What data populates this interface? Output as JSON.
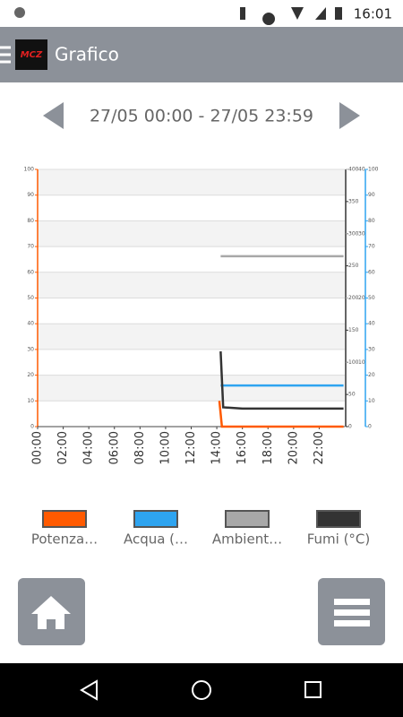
{
  "status_bar": {
    "time": "16:01"
  },
  "toolbar": {
    "logo": "MCZ",
    "title": "Grafico"
  },
  "date_range": "27/05 00:00 - 27/05 23:59",
  "chart_data": {
    "type": "line",
    "xlim": [
      0,
      24
    ],
    "xticks": [
      {
        "value": 0,
        "label": "00:00"
      },
      {
        "value": 2,
        "label": "02:00"
      },
      {
        "value": 4,
        "label": "04:00"
      },
      {
        "value": 6,
        "label": "06:00"
      },
      {
        "value": 8,
        "label": "08:00"
      },
      {
        "value": 10,
        "label": "10:00"
      },
      {
        "value": 12,
        "label": "12:00"
      },
      {
        "value": 14,
        "label": "14:00"
      },
      {
        "value": 16,
        "label": "16:00"
      },
      {
        "value": 18,
        "label": "18:00"
      },
      {
        "value": 20,
        "label": "20:00"
      },
      {
        "value": 22,
        "label": "22:00"
      }
    ],
    "ylim": [
      0,
      100
    ],
    "yticks": [
      0,
      10,
      20,
      30,
      40,
      50,
      60,
      70,
      80,
      90,
      100
    ],
    "y2lim": [
      0,
      400
    ],
    "y2ticks": [
      0,
      50,
      100,
      150,
      200,
      250,
      300,
      350,
      400
    ],
    "y3lim": [
      0,
      40
    ],
    "y3ticks": [
      10,
      20,
      30,
      40
    ],
    "y4lim": [
      0,
      100
    ],
    "y4ticks": [
      0,
      10,
      20,
      30,
      40,
      50,
      60,
      70,
      80,
      90,
      100
    ],
    "grid": true,
    "series": [
      {
        "name": "Potenza…",
        "color": "#ff5a00",
        "axis": "y",
        "x": [
          14.2,
          14.4,
          23.9
        ],
        "values": [
          10,
          0,
          0
        ]
      },
      {
        "name": "Acqua (…",
        "color": "#2ea4f0",
        "axis": "y4",
        "x": [
          14.3,
          23.9
        ],
        "values": [
          16,
          16
        ]
      },
      {
        "name": "Ambient…",
        "color": "#a8a8a8",
        "axis": "y3",
        "x": [
          14.3,
          23.9
        ],
        "values": [
          26.5,
          26.5
        ]
      },
      {
        "name": "Fumi (°C)",
        "color": "#333333",
        "axis": "y2",
        "x": [
          14.3,
          14.5,
          16,
          23.9
        ],
        "values": [
          117,
          30,
          28,
          28
        ]
      }
    ]
  }
}
